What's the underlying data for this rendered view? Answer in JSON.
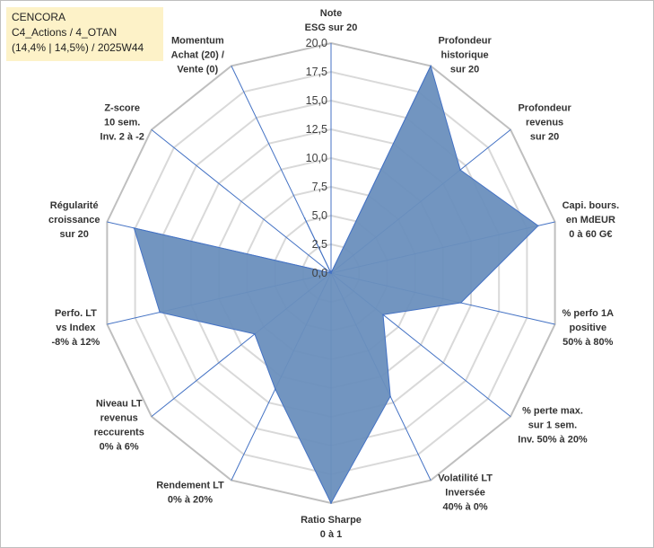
{
  "header": {
    "line1": "CENCORA",
    "line2": "C4_Actions / 4_OTAN",
    "line3": "(14,4% | 14,5%) / 2025W44"
  },
  "chart_data": {
    "type": "radar",
    "rmin": 0,
    "rmax": 20,
    "tick_step": 2.5,
    "tick_labels": [
      "0,0",
      "2,5",
      "5,0",
      "7,5",
      "10,0",
      "12,5",
      "15,0",
      "17,5",
      "20,0"
    ],
    "axes": [
      {
        "label": [
          "Note",
          "ESG sur 20"
        ],
        "value": 0
      },
      {
        "label": [
          "Profondeur",
          "historique",
          "sur 20"
        ],
        "value": 20
      },
      {
        "label": [
          "Profondeur",
          "revenus",
          "sur 20"
        ],
        "value": 14.4
      },
      {
        "label": [
          "Capi. bours.",
          "en MdEUR",
          "0 à 60 G€"
        ],
        "value": 18.5
      },
      {
        "label": [
          "% perfo 1A",
          "positive",
          "50% à 80%"
        ],
        "value": 11.6
      },
      {
        "label": [
          "% perte max.",
          "sur 1 sem.",
          "Inv. 50% à 20%"
        ],
        "value": 5.8
      },
      {
        "label": [
          "Volatilité LT",
          "Inversée",
          "40% à 0%"
        ],
        "value": 11.9
      },
      {
        "label": [
          "Ratio Sharpe",
          "0 à 1"
        ],
        "value": 20
      },
      {
        "label": [
          "Rendement LT",
          "0% à 20%"
        ],
        "value": 11.2
      },
      {
        "label": [
          "Niveau LT",
          "revenus",
          "reccurents",
          "0% à 6%"
        ],
        "value": 8.5
      },
      {
        "label": [
          "Perfo. LT",
          "vs Index",
          "-8% à 12%"
        ],
        "value": 15.3
      },
      {
        "label": [
          "Régularité",
          "croissance",
          "sur 20"
        ],
        "value": 17.6
      },
      {
        "label": [
          "Z-score",
          "10 sem.",
          "Inv. 2 à -2"
        ],
        "value": 0
      },
      {
        "label": [
          "Momentum",
          "Achat (20) /",
          "Vente (0)"
        ],
        "value": 5.3
      }
    ],
    "series": [
      {
        "name": "",
        "color": "#6a8fbd",
        "stroke": "#4472c4"
      }
    ],
    "grid": true,
    "legend": "none"
  }
}
